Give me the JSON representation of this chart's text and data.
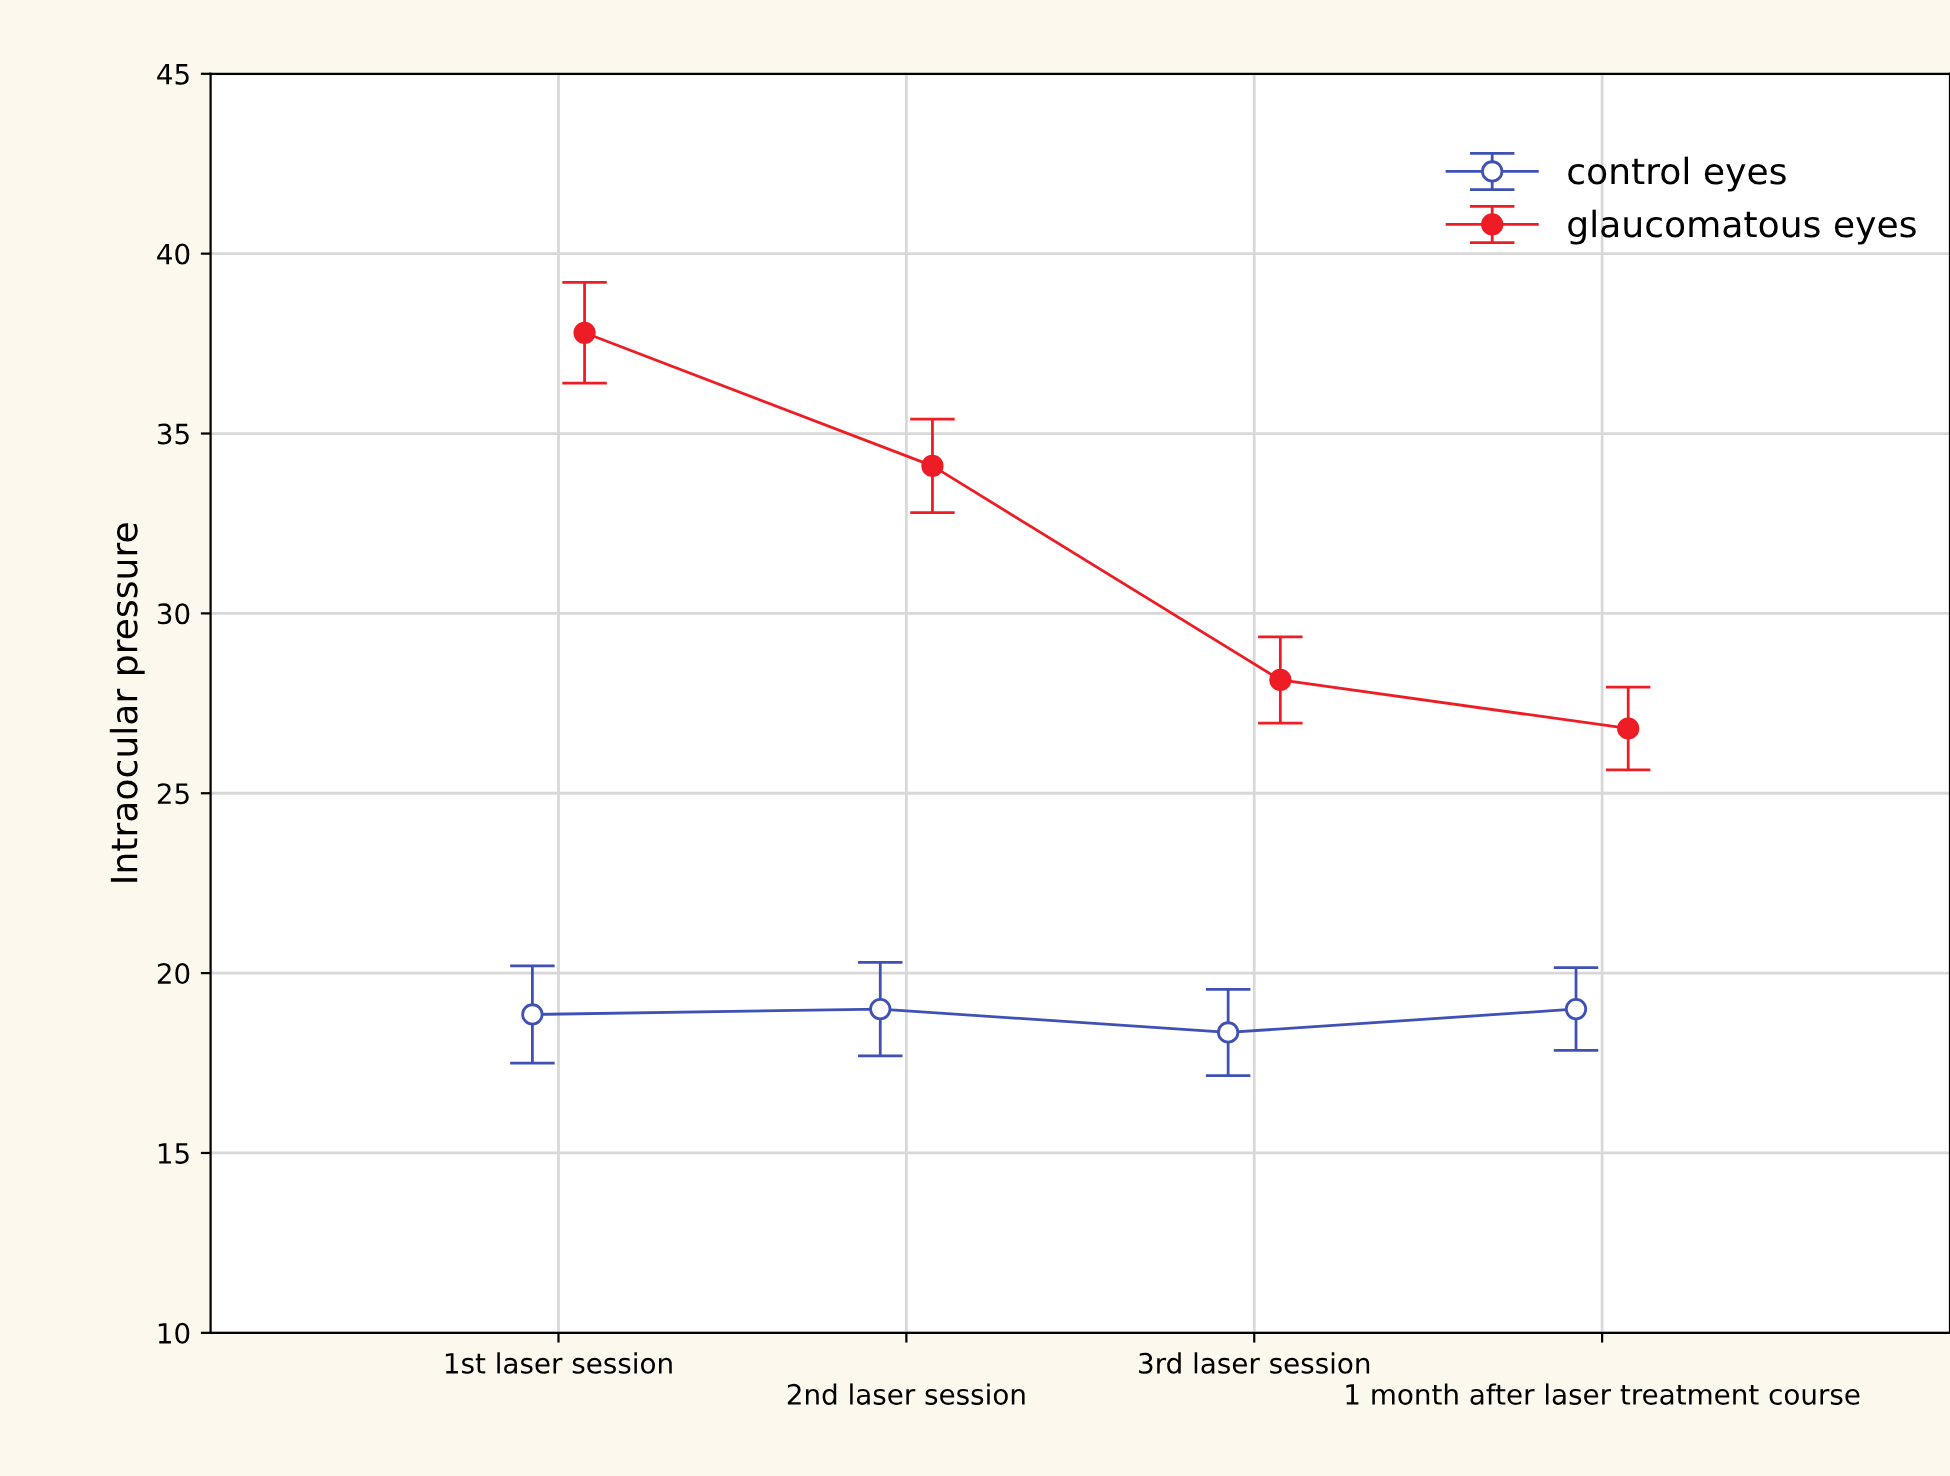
{
  "chart_data": {
    "type": "line",
    "ylabel": "Intraocular pressure",
    "categories": [
      "1st laser session",
      "2nd laser session",
      "3rd laser session",
      "1 month after laser treatment course"
    ],
    "series": [
      {
        "name": "control eyes",
        "color": "#3f51b5",
        "values": [
          18.85,
          19.0,
          18.35,
          19.0
        ],
        "errors": [
          1.35,
          1.3,
          1.2,
          1.15
        ]
      },
      {
        "name": "glaucomatous eyes",
        "color": "#ee1c25",
        "values": [
          37.8,
          34.1,
          28.15,
          26.8
        ],
        "errors": [
          1.4,
          1.3,
          1.2,
          1.15
        ]
      }
    ],
    "ylim": [
      10,
      45
    ],
    "yticks": [
      10,
      15,
      20,
      25,
      30,
      35,
      40,
      45
    ],
    "grid": true,
    "legend": "top right",
    "marker": "circle",
    "line_style": "solid"
  }
}
